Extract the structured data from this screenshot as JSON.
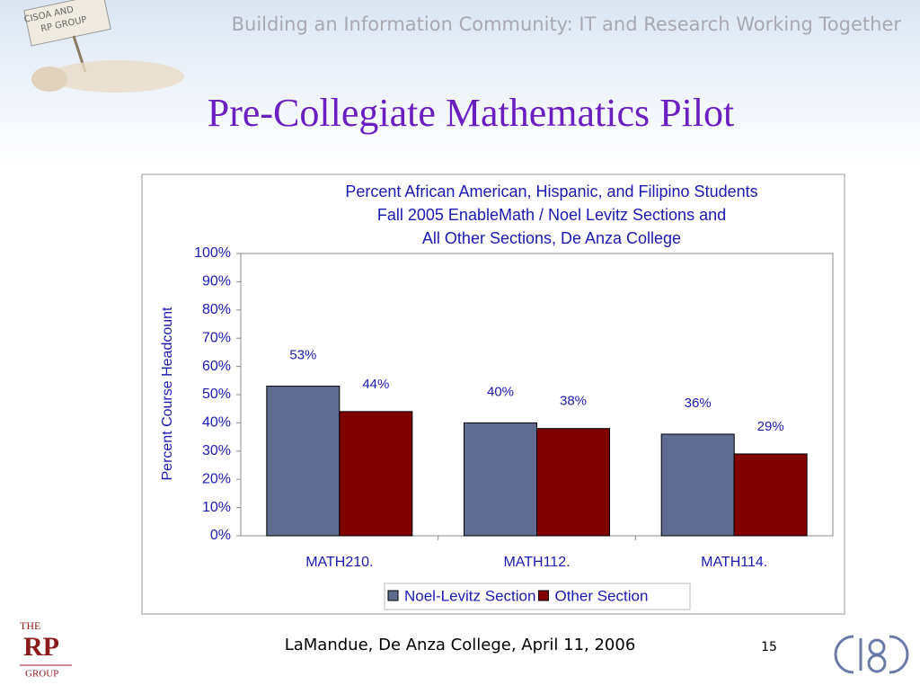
{
  "header": {
    "banner": "Building an Information Community:  IT and Research Working Together",
    "sign": [
      "CISOA AND",
      "RP GROUP"
    ]
  },
  "slide_title": "Pre-Collegiate Mathematics Pilot",
  "chart_data": {
    "type": "bar",
    "title": [
      "Percent African American, Hispanic, and Filipino Students",
      "Fall 2005 EnableMath / Noel Levitz Sections and",
      "All Other Sections, De Anza College"
    ],
    "y_label": "Percent Course Headcount",
    "categories": [
      "MATH210.",
      "MATH112.",
      "MATH114."
    ],
    "series": [
      {
        "name": "Noel-Levitz Section",
        "color": "#5f6b8f",
        "values": [
          53,
          40,
          36
        ],
        "value_labels": [
          "53%",
          "40%",
          "36%"
        ]
      },
      {
        "name": "Other Section",
        "color": "#800000",
        "values": [
          44,
          38,
          29
        ],
        "value_labels": [
          "44%",
          "38%",
          "29%"
        ]
      }
    ],
    "ylim": [
      0,
      100
    ],
    "yticks": [
      {
        "value": 0,
        "label": "0%"
      },
      {
        "value": 10,
        "label": "10%"
      },
      {
        "value": 20,
        "label": "20%"
      },
      {
        "value": 30,
        "label": "30%"
      },
      {
        "value": 40,
        "label": "40%"
      },
      {
        "value": 50,
        "label": "50%"
      },
      {
        "value": 60,
        "label": "60%"
      },
      {
        "value": 70,
        "label": "70%"
      },
      {
        "value": 80,
        "label": "80%"
      },
      {
        "value": 90,
        "label": "90%"
      },
      {
        "value": 100,
        "label": "100%"
      }
    ],
    "legend": "bottom"
  },
  "footer": {
    "text": "LaMandue, De Anza College, April 11, 2006",
    "page": "15",
    "logo": [
      "THE",
      "RP",
      "GROUP"
    ]
  }
}
